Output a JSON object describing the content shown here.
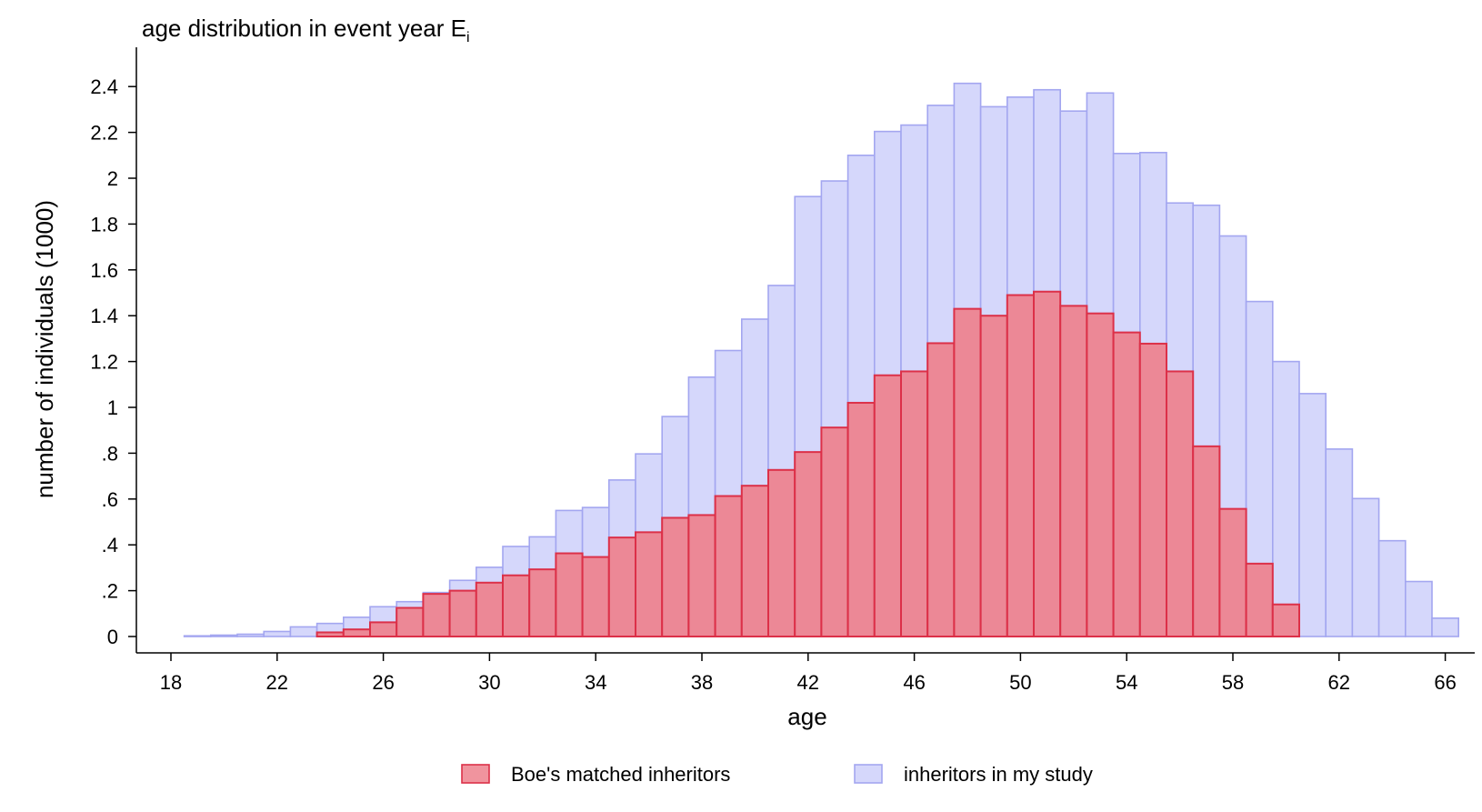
{
  "chart_data": {
    "type": "bar",
    "title": "age distribution in event year E",
    "title_subscript": "i",
    "xlabel": "age",
    "ylabel": "number of individuals (1000)",
    "xlim": [
      17,
      67
    ],
    "ylim": [
      0,
      2.5
    ],
    "x_ticks": [
      18,
      22,
      26,
      30,
      34,
      38,
      42,
      46,
      50,
      54,
      58,
      62,
      66
    ],
    "y_ticks": [
      {
        "value": 0,
        "label": "0"
      },
      {
        "value": 0.2,
        "label": ".2"
      },
      {
        "value": 0.4,
        "label": ".4"
      },
      {
        "value": 0.6,
        "label": ".6"
      },
      {
        "value": 0.8,
        "label": ".8"
      },
      {
        "value": 1.0,
        "label": "1"
      },
      {
        "value": 1.2,
        "label": "1.2"
      },
      {
        "value": 1.4,
        "label": "1.4"
      },
      {
        "value": 1.6,
        "label": "1.6"
      },
      {
        "value": 1.8,
        "label": "1.8"
      },
      {
        "value": 2.0,
        "label": "2"
      },
      {
        "value": 2.2,
        "label": "2.2"
      },
      {
        "value": 2.4,
        "label": "2.4"
      }
    ],
    "grid": false,
    "legend_position": "bottom",
    "series": [
      {
        "name": "inheritors in my study",
        "color": "#d5d7fb",
        "edge_color": "#a3a6f0",
        "x": [
          19,
          20,
          21,
          22,
          23,
          24,
          25,
          26,
          27,
          28,
          29,
          30,
          31,
          32,
          33,
          34,
          35,
          36,
          37,
          38,
          39,
          40,
          41,
          42,
          43,
          44,
          45,
          46,
          47,
          48,
          49,
          50,
          51,
          52,
          53,
          54,
          55,
          56,
          57,
          58,
          59,
          60,
          61,
          62,
          63,
          64,
          65,
          66
        ],
        "values": [
          0.003,
          0.006,
          0.01,
          0.022,
          0.042,
          0.057,
          0.084,
          0.13,
          0.152,
          0.192,
          0.245,
          0.302,
          0.393,
          0.435,
          0.55,
          0.563,
          0.683,
          0.797,
          0.96,
          1.132,
          1.248,
          1.385,
          1.532,
          1.92,
          1.988,
          2.1,
          2.204,
          2.232,
          2.318,
          2.414,
          2.312,
          2.354,
          2.386,
          2.293,
          2.372,
          2.108,
          2.112,
          1.892,
          1.882,
          1.748,
          1.462,
          1.2,
          1.06,
          0.818,
          0.602,
          0.418,
          0.24,
          0.08
        ]
      },
      {
        "name": "Boe's matched inheritors",
        "color": "#ec8896",
        "edge_color": "#dc3048",
        "x": [
          24,
          25,
          26,
          27,
          28,
          29,
          30,
          31,
          32,
          33,
          34,
          35,
          36,
          37,
          38,
          39,
          40,
          41,
          42,
          43,
          44,
          45,
          46,
          47,
          48,
          49,
          50,
          51,
          52,
          53,
          54,
          55,
          56,
          57,
          58,
          59,
          60
        ],
        "values": [
          0.018,
          0.031,
          0.062,
          0.125,
          0.186,
          0.2,
          0.235,
          0.267,
          0.293,
          0.363,
          0.347,
          0.432,
          0.455,
          0.518,
          0.53,
          0.613,
          0.658,
          0.727,
          0.805,
          0.912,
          1.02,
          1.14,
          1.157,
          1.28,
          1.43,
          1.4,
          1.49,
          1.505,
          1.443,
          1.41,
          1.327,
          1.278,
          1.157,
          0.83,
          0.557,
          0.318,
          0.14
        ]
      }
    ],
    "legend": [
      {
        "label": "Boe's matched inheritors",
        "color": "#f0949e",
        "edge_color": "#dc3048"
      },
      {
        "label": "inheritors in my study",
        "color": "#d5d7fb",
        "edge_color": "#a3a6f0"
      }
    ]
  }
}
